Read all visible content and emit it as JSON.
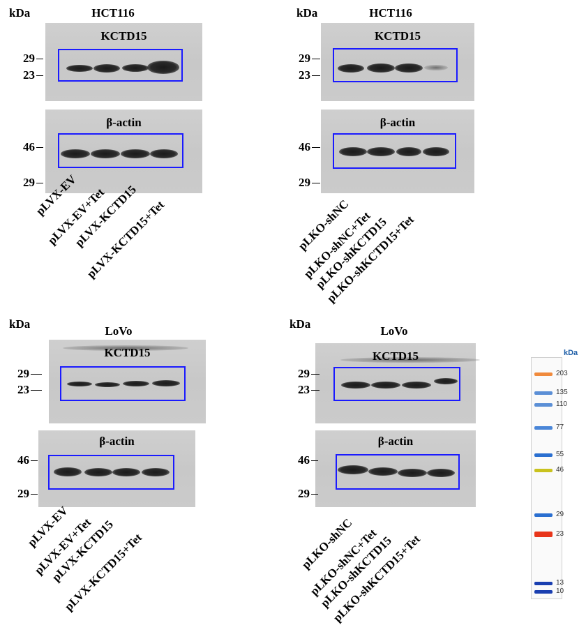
{
  "kda_label": "kDa",
  "kctd15": "KCTD15",
  "actin": "β-actin",
  "mw": {
    "29": "29",
    "23": "23",
    "46": "46"
  },
  "panels": [
    {
      "cell_line": "HCT116",
      "lanes": [
        "pLVX-EV",
        "pLVX-EV+Tet",
        "pLVX-KCTD15",
        "pLVX-KCTD15+Tet"
      ]
    },
    {
      "cell_line": "HCT116",
      "lanes": [
        "pLKO-shNC",
        "pLKO-shNC+Tet",
        "pLKO-shKCTD15",
        "pLKO-shKCTD15+Tet"
      ]
    },
    {
      "cell_line": "LoVo",
      "lanes": [
        "pLVX-EV",
        "pLVX-EV+Tet",
        "pLVX-KCTD15",
        "pLVX-KCTD15+Tet"
      ]
    },
    {
      "cell_line": "LoVo",
      "lanes": [
        "pLKO-shNC",
        "pLKO-shNC+Tet",
        "pLKO-shKCTD15",
        "pLKO-shKCTD15+Tet"
      ]
    }
  ],
  "ladder": {
    "unit": "kDa",
    "bands": [
      {
        "label": "203",
        "color": "#f08a3c"
      },
      {
        "label": "135",
        "color": "#5b8fd6"
      },
      {
        "label": "110",
        "color": "#5b8fd6"
      },
      {
        "label": "77",
        "color": "#4a86d8"
      },
      {
        "label": "55",
        "color": "#2a6fd0"
      },
      {
        "label": "46",
        "color": "#c9c21e"
      },
      {
        "label": "29",
        "color": "#2a6fd0"
      },
      {
        "label": "23",
        "color": "#e8351a"
      },
      {
        "label": "13",
        "color": "#1a3fb0"
      },
      {
        "label": "10",
        "color": "#1a3fb0"
      }
    ]
  }
}
